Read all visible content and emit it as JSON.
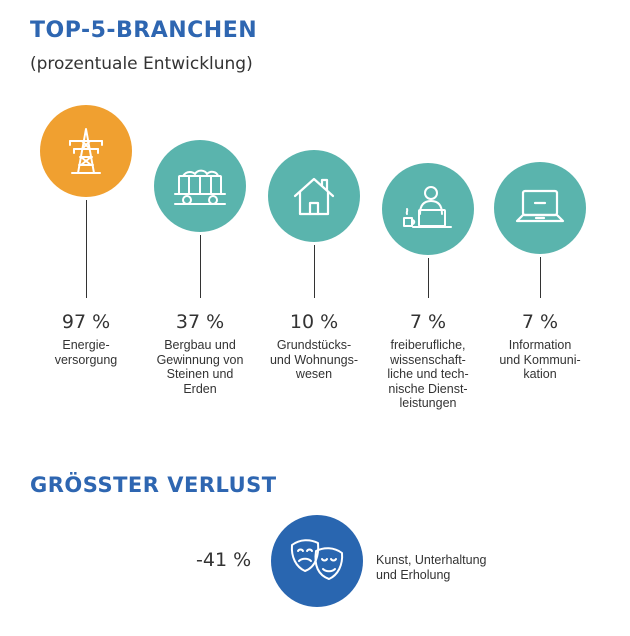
{
  "header": {
    "title": "TOP-5-BRANCHEN",
    "subtitle": "(prozentuale Entwicklung)"
  },
  "colors": {
    "accent_blue": "#2e66b1",
    "orange": "#f0a030",
    "teal": "#5ab4ad",
    "dark_blue": "#2966b0"
  },
  "branches": [
    {
      "value": "97 %",
      "label": "Energie-\nversorgung",
      "icon": "power-pylon-icon",
      "color": "#f0a030"
    },
    {
      "value": "37 %",
      "label": "Bergbau und\nGewinnung von\nSteinen und\nErden",
      "icon": "mining-cart-icon",
      "color": "#5ab4ad"
    },
    {
      "value": "10 %",
      "label": "Grundstücks-\nund Wohnungs-\nwesen",
      "icon": "house-icon",
      "color": "#5ab4ad"
    },
    {
      "value": "7 %",
      "label": "freiberufliche,\nwissenschaft-\nliche und tech-\nnische Dienst-\nleistungen",
      "icon": "person-at-laptop-icon",
      "color": "#5ab4ad"
    },
    {
      "value": "7 %",
      "label": "Information\nund Kommuni-\nkation",
      "icon": "laptop-icon",
      "color": "#5ab4ad"
    }
  ],
  "loss": {
    "title": "GRÖSSTER VERLUST",
    "value": "-41 %",
    "label": "Kunst, Unterhaltung\nund Erholung",
    "icon": "theater-masks-icon",
    "color": "#2966b0"
  }
}
